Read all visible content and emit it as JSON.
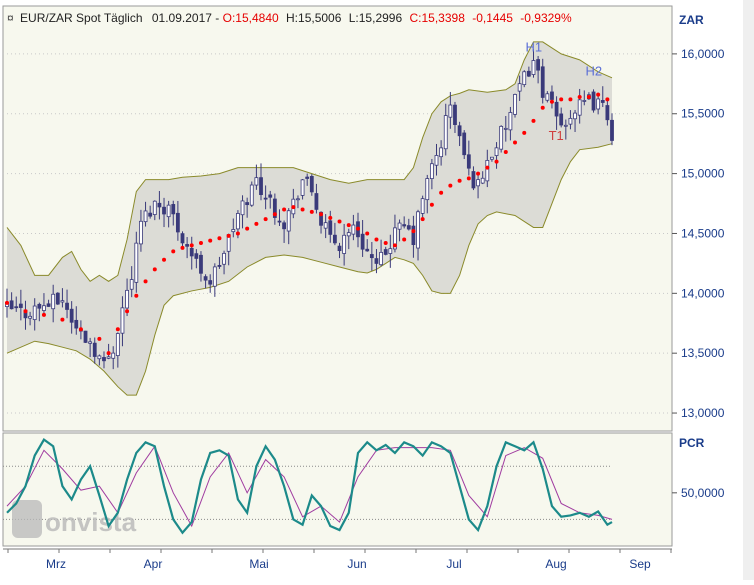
{
  "header": {
    "marker": "¤",
    "instrument": "EUR/ZAR Spot Täglich",
    "date": "01.09.2017",
    "sep": " - ",
    "open_label": "O:15,4840",
    "high_label": "H:15,5006",
    "low_label": "L:15,2996",
    "close_label": "C:15,3398",
    "change_label": "-0,1445",
    "change_pct_label": "-0,9329%"
  },
  "colors": {
    "background": "#f7f8ee",
    "band_fill": "#dcdcd6",
    "band_line": "#8a8a2a",
    "candle": "#3a3a7a",
    "psar": "#ff0000",
    "pcr_main": "#1c8a8a",
    "pcr_signal": "#a03ca0",
    "negative": "#e60000",
    "annotation_h": "#5b6fd6",
    "annotation_t": "#d04040"
  },
  "axis": {
    "price_unit": "ZAR",
    "pcr_unit": "PCR",
    "price_ticks": [
      "16,0000",
      "15,5000",
      "15,0000",
      "14,5000",
      "14,0000",
      "13,5000",
      "13,0000"
    ],
    "pcr_ticks": [
      "50,0000"
    ],
    "months": [
      "Mrz",
      "Apr",
      "Mai",
      "Jun",
      "Jul",
      "Aug",
      "Sep"
    ]
  },
  "watermark": "onvista",
  "chart_data": {
    "type": "candlestick",
    "title": "EUR/ZAR Spot Täglich",
    "ylabel": "ZAR",
    "ylim": [
      12.85,
      16.4
    ],
    "price_close_points": [
      [
        0,
        13.87
      ],
      [
        4,
        13.84
      ],
      [
        8,
        13.9
      ],
      [
        12,
        13.95
      ],
      [
        15,
        13.7
      ],
      [
        18,
        13.6
      ],
      [
        21,
        13.4
      ],
      [
        23,
        13.55
      ],
      [
        25,
        13.88
      ],
      [
        27,
        14.15
      ],
      [
        29,
        14.6
      ],
      [
        32,
        14.75
      ],
      [
        35,
        14.72
      ],
      [
        37,
        14.55
      ],
      [
        39,
        14.4
      ],
      [
        41,
        14.25
      ],
      [
        44,
        14.1
      ],
      [
        46,
        14.25
      ],
      [
        48,
        14.45
      ],
      [
        50,
        14.65
      ],
      [
        52,
        14.8
      ],
      [
        54,
        14.95
      ],
      [
        56,
        14.82
      ],
      [
        58,
        14.7
      ],
      [
        60,
        14.6
      ],
      [
        62,
        14.75
      ],
      [
        64,
        14.95
      ],
      [
        66,
        14.85
      ],
      [
        68,
        14.6
      ],
      [
        70,
        14.45
      ],
      [
        72,
        14.4
      ],
      [
        74,
        14.55
      ],
      [
        76,
        14.5
      ],
      [
        78,
        14.35
      ],
      [
        80,
        14.2
      ],
      [
        82,
        14.35
      ],
      [
        84,
        14.5
      ],
      [
        86,
        14.55
      ],
      [
        88,
        14.45
      ],
      [
        90,
        14.8
      ],
      [
        92,
        15.05
      ],
      [
        94,
        15.25
      ],
      [
        95,
        15.45
      ],
      [
        96,
        15.55
      ],
      [
        98,
        15.3
      ],
      [
        100,
        15.0
      ],
      [
        102,
        14.9
      ],
      [
        104,
        15.1
      ],
      [
        106,
        15.25
      ],
      [
        108,
        15.4
      ],
      [
        110,
        15.6
      ],
      [
        112,
        15.8
      ],
      [
        114,
        15.95
      ],
      [
        116,
        15.7
      ],
      [
        118,
        15.55
      ],
      [
        120,
        15.4
      ],
      [
        122,
        15.5
      ],
      [
        124,
        15.55
      ],
      [
        126,
        15.6
      ],
      [
        128,
        15.58
      ],
      [
        130,
        15.5
      ],
      [
        131,
        15.34
      ]
    ],
    "psar_points": [
      [
        0,
        13.92
      ],
      [
        4,
        13.85
      ],
      [
        8,
        13.82
      ],
      [
        12,
        13.78
      ],
      [
        16,
        13.7
      ],
      [
        20,
        13.62
      ],
      [
        22,
        13.5
      ],
      [
        24,
        13.7
      ],
      [
        26,
        13.85
      ],
      [
        28,
        13.98
      ],
      [
        30,
        14.1
      ],
      [
        32,
        14.2
      ],
      [
        34,
        14.28
      ],
      [
        36,
        14.35
      ],
      [
        38,
        14.38
      ],
      [
        40,
        14.4
      ],
      [
        42,
        14.42
      ],
      [
        44,
        14.44
      ],
      [
        46,
        14.46
      ],
      [
        48,
        14.48
      ],
      [
        50,
        14.5
      ],
      [
        52,
        14.54
      ],
      [
        54,
        14.58
      ],
      [
        56,
        14.62
      ],
      [
        58,
        14.66
      ],
      [
        60,
        14.7
      ],
      [
        62,
        14.72
      ],
      [
        64,
        14.7
      ],
      [
        66,
        14.68
      ],
      [
        68,
        14.66
      ],
      [
        70,
        14.63
      ],
      [
        72,
        14.6
      ],
      [
        74,
        14.57
      ],
      [
        76,
        14.54
      ],
      [
        78,
        14.5
      ],
      [
        80,
        14.45
      ],
      [
        82,
        14.42
      ],
      [
        84,
        14.4
      ],
      [
        86,
        14.45
      ],
      [
        88,
        14.52
      ],
      [
        90,
        14.62
      ],
      [
        92,
        14.74
      ],
      [
        94,
        14.84
      ],
      [
        96,
        14.9
      ],
      [
        98,
        14.94
      ],
      [
        100,
        14.96
      ],
      [
        102,
        15.0
      ],
      [
        104,
        15.05
      ],
      [
        106,
        15.1
      ],
      [
        108,
        15.18
      ],
      [
        110,
        15.26
      ],
      [
        112,
        15.34
      ],
      [
        114,
        15.44
      ],
      [
        116,
        15.55
      ],
      [
        118,
        15.6
      ],
      [
        120,
        15.62
      ],
      [
        122,
        15.62
      ],
      [
        124,
        15.64
      ],
      [
        126,
        15.64
      ],
      [
        128,
        15.66
      ],
      [
        130,
        15.62
      ]
    ],
    "bollinger_upper": [
      [
        0,
        14.55
      ],
      [
        3,
        14.4
      ],
      [
        6,
        14.15
      ],
      [
        9,
        14.15
      ],
      [
        12,
        14.3
      ],
      [
        14,
        14.35
      ],
      [
        16,
        14.2
      ],
      [
        18,
        14.1
      ],
      [
        20,
        14.15
      ],
      [
        22,
        14.1
      ],
      [
        24,
        14.15
      ],
      [
        26,
        14.45
      ],
      [
        28,
        14.85
      ],
      [
        30,
        14.95
      ],
      [
        32,
        14.95
      ],
      [
        35,
        14.95
      ],
      [
        38,
        14.97
      ],
      [
        42,
        14.98
      ],
      [
        46,
        15.0
      ],
      [
        50,
        15.05
      ],
      [
        54,
        15.05
      ],
      [
        58,
        15.05
      ],
      [
        62,
        15.05
      ],
      [
        66,
        15.0
      ],
      [
        70,
        14.95
      ],
      [
        74,
        14.92
      ],
      [
        78,
        14.95
      ],
      [
        82,
        14.95
      ],
      [
        86,
        14.95
      ],
      [
        88,
        15.05
      ],
      [
        90,
        15.3
      ],
      [
        92,
        15.5
      ],
      [
        94,
        15.6
      ],
      [
        96,
        15.65
      ],
      [
        98,
        15.67
      ],
      [
        100,
        15.7
      ],
      [
        104,
        15.68
      ],
      [
        108,
        15.7
      ],
      [
        110,
        15.75
      ],
      [
        112,
        15.95
      ],
      [
        114,
        16.1
      ],
      [
        116,
        16.1
      ],
      [
        118,
        16.05
      ],
      [
        120,
        16.0
      ],
      [
        124,
        15.95
      ],
      [
        128,
        15.85
      ],
      [
        131,
        15.8
      ]
    ],
    "bollinger_lower": [
      [
        0,
        13.5
      ],
      [
        3,
        13.55
      ],
      [
        6,
        13.6
      ],
      [
        9,
        13.58
      ],
      [
        12,
        13.55
      ],
      [
        15,
        13.52
      ],
      [
        18,
        13.45
      ],
      [
        21,
        13.35
      ],
      [
        24,
        13.22
      ],
      [
        26,
        13.15
      ],
      [
        28,
        13.15
      ],
      [
        30,
        13.35
      ],
      [
        32,
        13.65
      ],
      [
        34,
        13.9
      ],
      [
        36,
        13.98
      ],
      [
        40,
        14.02
      ],
      [
        44,
        14.05
      ],
      [
        48,
        14.1
      ],
      [
        52,
        14.22
      ],
      [
        56,
        14.3
      ],
      [
        60,
        14.32
      ],
      [
        64,
        14.3
      ],
      [
        68,
        14.26
      ],
      [
        72,
        14.22
      ],
      [
        76,
        14.18
      ],
      [
        78,
        14.17
      ],
      [
        80,
        14.2
      ],
      [
        82,
        14.25
      ],
      [
        84,
        14.3
      ],
      [
        86,
        14.28
      ],
      [
        88,
        14.25
      ],
      [
        90,
        14.15
      ],
      [
        92,
        14.02
      ],
      [
        94,
        14.0
      ],
      [
        96,
        14.0
      ],
      [
        98,
        14.15
      ],
      [
        100,
        14.4
      ],
      [
        102,
        14.58
      ],
      [
        104,
        14.65
      ],
      [
        106,
        14.68
      ],
      [
        110,
        14.65
      ],
      [
        114,
        14.55
      ],
      [
        116,
        14.55
      ],
      [
        118,
        14.75
      ],
      [
        120,
        14.95
      ],
      [
        122,
        15.1
      ],
      [
        124,
        15.2
      ],
      [
        128,
        15.22
      ],
      [
        131,
        15.25
      ]
    ],
    "annotations": [
      {
        "label": "H1",
        "x": 114,
        "y": 16.02
      },
      {
        "label": "H2",
        "x": 127,
        "y": 15.82
      },
      {
        "label": "T1",
        "x": 119,
        "y": 15.28
      }
    ],
    "pcr": {
      "label": "PCR",
      "ylim": [
        10,
        95
      ],
      "levels": [
        70,
        30
      ],
      "main": [
        [
          0,
          35
        ],
        [
          2,
          42
        ],
        [
          4,
          55
        ],
        [
          6,
          78
        ],
        [
          8,
          90
        ],
        [
          10,
          85
        ],
        [
          12,
          55
        ],
        [
          14,
          45
        ],
        [
          16,
          60
        ],
        [
          18,
          70
        ],
        [
          20,
          48
        ],
        [
          22,
          25
        ],
        [
          24,
          35
        ],
        [
          26,
          60
        ],
        [
          28,
          80
        ],
        [
          30,
          88
        ],
        [
          32,
          85
        ],
        [
          34,
          55
        ],
        [
          36,
          30
        ],
        [
          38,
          20
        ],
        [
          40,
          28
        ],
        [
          42,
          60
        ],
        [
          44,
          80
        ],
        [
          46,
          82
        ],
        [
          48,
          78
        ],
        [
          50,
          45
        ],
        [
          52,
          35
        ],
        [
          54,
          70
        ],
        [
          56,
          85
        ],
        [
          58,
          75
        ],
        [
          60,
          55
        ],
        [
          62,
          30
        ],
        [
          64,
          26
        ],
        [
          66,
          48
        ],
        [
          68,
          40
        ],
        [
          70,
          25
        ],
        [
          72,
          22
        ],
        [
          74,
          35
        ],
        [
          76,
          80
        ],
        [
          78,
          88
        ],
        [
          80,
          82
        ],
        [
          82,
          86
        ],
        [
          84,
          80
        ],
        [
          86,
          88
        ],
        [
          88,
          85
        ],
        [
          90,
          78
        ],
        [
          92,
          88
        ],
        [
          94,
          85
        ],
        [
          96,
          80
        ],
        [
          98,
          55
        ],
        [
          100,
          30
        ],
        [
          102,
          22
        ],
        [
          104,
          40
        ],
        [
          106,
          70
        ],
        [
          108,
          88
        ],
        [
          110,
          85
        ],
        [
          112,
          82
        ],
        [
          114,
          88
        ],
        [
          116,
          68
        ],
        [
          118,
          40
        ],
        [
          120,
          32
        ],
        [
          122,
          33
        ],
        [
          124,
          35
        ],
        [
          126,
          32
        ],
        [
          128,
          36
        ],
        [
          130,
          26
        ],
        [
          131,
          28
        ]
      ],
      "signal": [
        [
          0,
          40
        ],
        [
          4,
          55
        ],
        [
          8,
          82
        ],
        [
          12,
          68
        ],
        [
          16,
          52
        ],
        [
          20,
          55
        ],
        [
          24,
          35
        ],
        [
          28,
          65
        ],
        [
          32,
          85
        ],
        [
          36,
          50
        ],
        [
          40,
          25
        ],
        [
          44,
          62
        ],
        [
          48,
          80
        ],
        [
          52,
          50
        ],
        [
          56,
          75
        ],
        [
          60,
          62
        ],
        [
          64,
          32
        ],
        [
          68,
          40
        ],
        [
          72,
          28
        ],
        [
          76,
          62
        ],
        [
          80,
          82
        ],
        [
          84,
          84
        ],
        [
          88,
          84
        ],
        [
          92,
          84
        ],
        [
          96,
          82
        ],
        [
          100,
          48
        ],
        [
          104,
          32
        ],
        [
          108,
          78
        ],
        [
          112,
          84
        ],
        [
          116,
          76
        ],
        [
          120,
          42
        ],
        [
          124,
          35
        ],
        [
          128,
          33
        ],
        [
          131,
          30
        ]
      ]
    }
  }
}
